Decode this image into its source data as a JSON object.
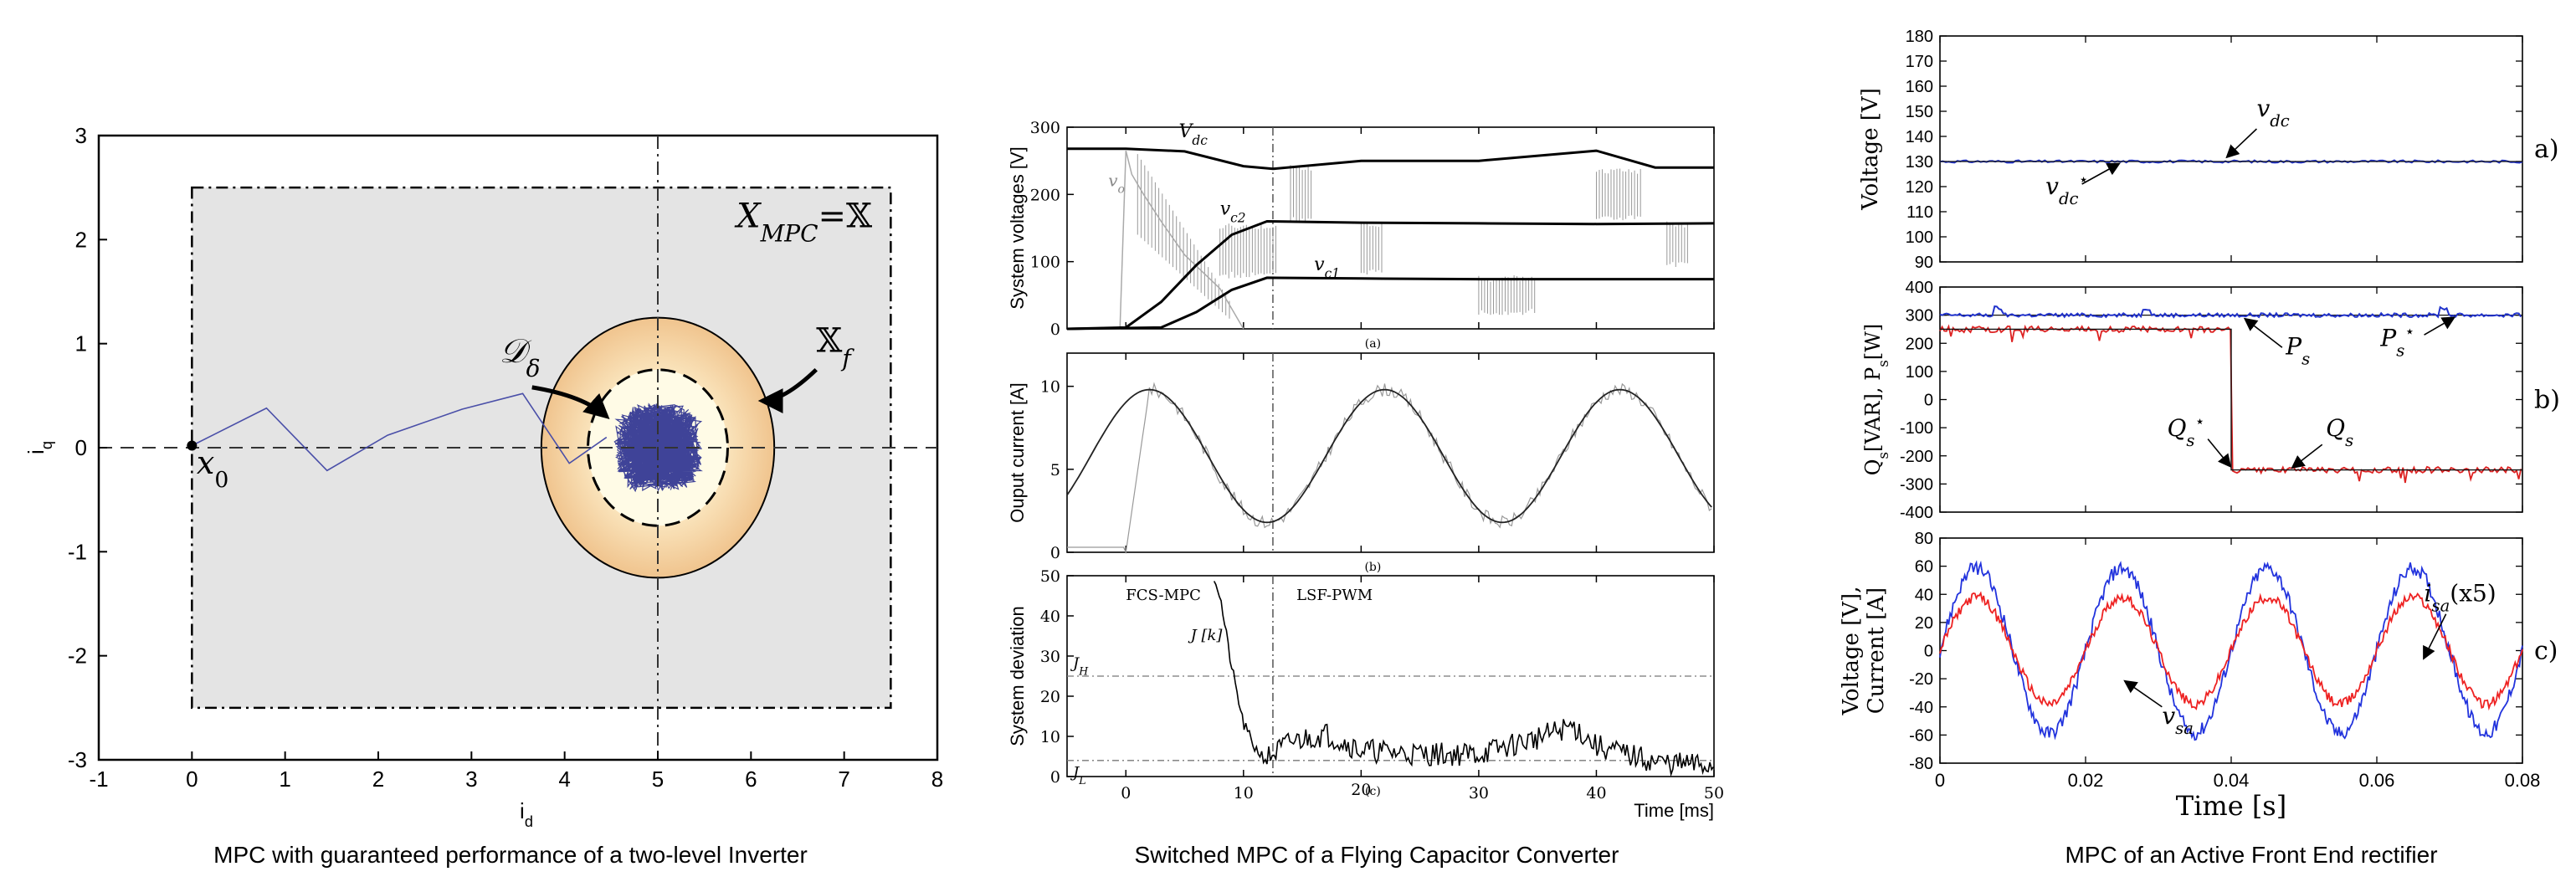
{
  "chart_data": [
    {
      "type": "line",
      "caption": "MPC with guaranteed performance of a two-level Inverter",
      "xlabel": "i",
      "xlabel_sub": "d",
      "ylabel": "i",
      "ylabel_sub": "q",
      "xlim": [
        -1,
        8
      ],
      "ylim": [
        -3,
        3
      ],
      "xticks": [
        "-1",
        "0",
        "1",
        "2",
        "3",
        "4",
        "5",
        "6",
        "7",
        "8"
      ],
      "yticks": [
        "3",
        "2",
        "1",
        "0",
        "-1",
        "-2",
        "-3"
      ],
      "region_label": "X",
      "region_label_sub": "MPC",
      "region_label_eq": "=𝕏",
      "region_rect": {
        "x": [
          0,
          7.5
        ],
        "y": [
          -2.5,
          2.5
        ]
      },
      "terminal_set_label": "𝕏",
      "terminal_set_sub": "f",
      "terminal_ellipse": {
        "center": [
          5,
          0
        ],
        "rx": 1.25,
        "ry": 1.25
      },
      "inner_ellipse": {
        "center": [
          5,
          0
        ],
        "rx": 0.75,
        "ry": 0.75
      },
      "disturbance_label": "𝒟",
      "disturbance_sub": "δ",
      "start_label": "x",
      "start_sub": "0",
      "trajectory": {
        "x": [
          0,
          0.8,
          1.45,
          2.1,
          2.9,
          3.55,
          4.05,
          4.45
        ],
        "y": [
          0.02,
          0.38,
          -0.22,
          0.12,
          0.37,
          0.52,
          -0.15,
          0.1
        ]
      }
    },
    {
      "type": "line",
      "caption": "Switched MPC of a Flying Capacitor Converter",
      "xlabel": "Time [ms]",
      "xlim": [
        -5,
        50
      ],
      "xticks": [
        "0",
        "10",
        "20",
        "30",
        "40",
        "50"
      ],
      "switch_time": 12.5,
      "mode_labels": [
        "FCS-MPC",
        "LSF-PWM"
      ],
      "panels": [
        {
          "id": "a",
          "ylabel": "System voltages [V]",
          "ylim": [
            0,
            300
          ],
          "yticks": [
            "0",
            "100",
            "200",
            "300"
          ],
          "series_labels": [
            "V",
            "v",
            "v",
            "v"
          ],
          "series_subs": [
            "dc",
            "o",
            "c2",
            "c1"
          ],
          "vdc": {
            "x": [
              -5,
              0,
              5,
              10,
              12.5,
              20,
              30,
              40,
              45,
              50
            ],
            "y": [
              268,
              268,
              264,
              242,
              238,
              250,
              250,
              265,
              240,
              240
            ]
          },
          "vc2": {
            "x": [
              -5,
              0,
              3,
              6,
              9,
              12,
              20,
              30,
              40,
              50
            ],
            "y": [
              0,
              2,
              40,
              95,
              140,
              160,
              158,
              157,
              156,
              157
            ]
          },
          "vc1": {
            "x": [
              -5,
              3,
              6,
              9,
              12,
              20,
              30,
              40,
              50
            ],
            "y": [
              0,
              2,
              25,
              58,
              76,
              75,
              74,
              74,
              74
            ]
          },
          "vo": {
            "x": [
              -5,
              -0.5,
              0,
              0.5,
              1.5,
              3,
              5,
              8,
              10
            ],
            "y": [
              0,
              0,
              265,
              230,
              200,
              160,
              110,
              60,
              0
            ]
          }
        },
        {
          "id": "b",
          "ylabel": "Ouput current [A]",
          "ylim": [
            0,
            12
          ],
          "yticks": [
            "0",
            "5",
            "10"
          ],
          "amplitude": 4,
          "offset": 5.8,
          "period_ms": 20,
          "peak_time_ms": 2
        },
        {
          "id": "c",
          "ylabel": "System deviation",
          "ylim": [
            0,
            50
          ],
          "yticks": [
            "0",
            "10",
            "20",
            "30",
            "40",
            "50"
          ],
          "series_labels": [
            "J [k]",
            "J",
            "J"
          ],
          "series_subs": [
            "",
            "H",
            "L"
          ],
          "JH": 25,
          "JL": 4,
          "J": {
            "x": [
              7.5,
              8,
              9,
              10,
              11,
              12,
              14,
              17,
              20,
              25,
              30,
              35,
              38,
              40,
              45,
              50
            ],
            "y": [
              50,
              45,
              27,
              13,
              7,
              4,
              8,
              10,
              6,
              5,
              5,
              9,
              12,
              7,
              3,
              2
            ]
          }
        }
      ]
    },
    {
      "type": "line",
      "caption": "MPC of an Active Front End rectifier",
      "xlabel": "Time [s]",
      "xlim": [
        0,
        0.08
      ],
      "xticks": [
        "0",
        "0.02",
        "0.04",
        "0.06",
        "0.08"
      ],
      "panels": [
        {
          "id": "a)",
          "ylabel": "Voltage [V]",
          "ylim": [
            90,
            180
          ],
          "yticks": [
            "180",
            "170",
            "160",
            "150",
            "140",
            "130",
            "120",
            "110",
            "100",
            "90"
          ],
          "vdc": 130,
          "vdc_ref": 130,
          "series_labels": [
            "v",
            "v"
          ],
          "series_subs": [
            "dc",
            "dc"
          ],
          "series_sups": [
            "",
            "⋆"
          ]
        },
        {
          "id": "b)",
          "ylabel": "Q",
          "ylabel_sub": "s",
          "ylabel_rest": "[VAR], P",
          "ylabel_sub2": "s",
          "ylabel_end": "[W]",
          "ylim": [
            -400,
            400
          ],
          "yticks": [
            "400",
            "300",
            "200",
            "100",
            "0",
            "-100",
            "-200",
            "-300",
            "-400"
          ],
          "Ps": 300,
          "Q_before": 250,
          "Q_after": -250,
          "step_time": 0.04,
          "series_labels": [
            "P",
            "P",
            "Q",
            "Q"
          ],
          "series_subs": [
            "s",
            "s",
            "s",
            "s"
          ],
          "series_sups": [
            "",
            "⋆",
            "⋆",
            ""
          ]
        },
        {
          "id": "c)",
          "ylabel_line1": "Voltage [V],",
          "ylabel_line2": "Current [A]",
          "ylim": [
            -80,
            80
          ],
          "yticks": [
            "80",
            "60",
            "40",
            "20",
            "0",
            "-20",
            "-40",
            "-60",
            "-80"
          ],
          "vsa_amplitude": 60,
          "isa_amplitude": 38,
          "frequency_hz": 50,
          "series_labels": [
            "i",
            "v"
          ],
          "series_subs": [
            "sa",
            "sa"
          ],
          "series_notes": [
            "(x5)",
            ""
          ]
        }
      ]
    }
  ]
}
